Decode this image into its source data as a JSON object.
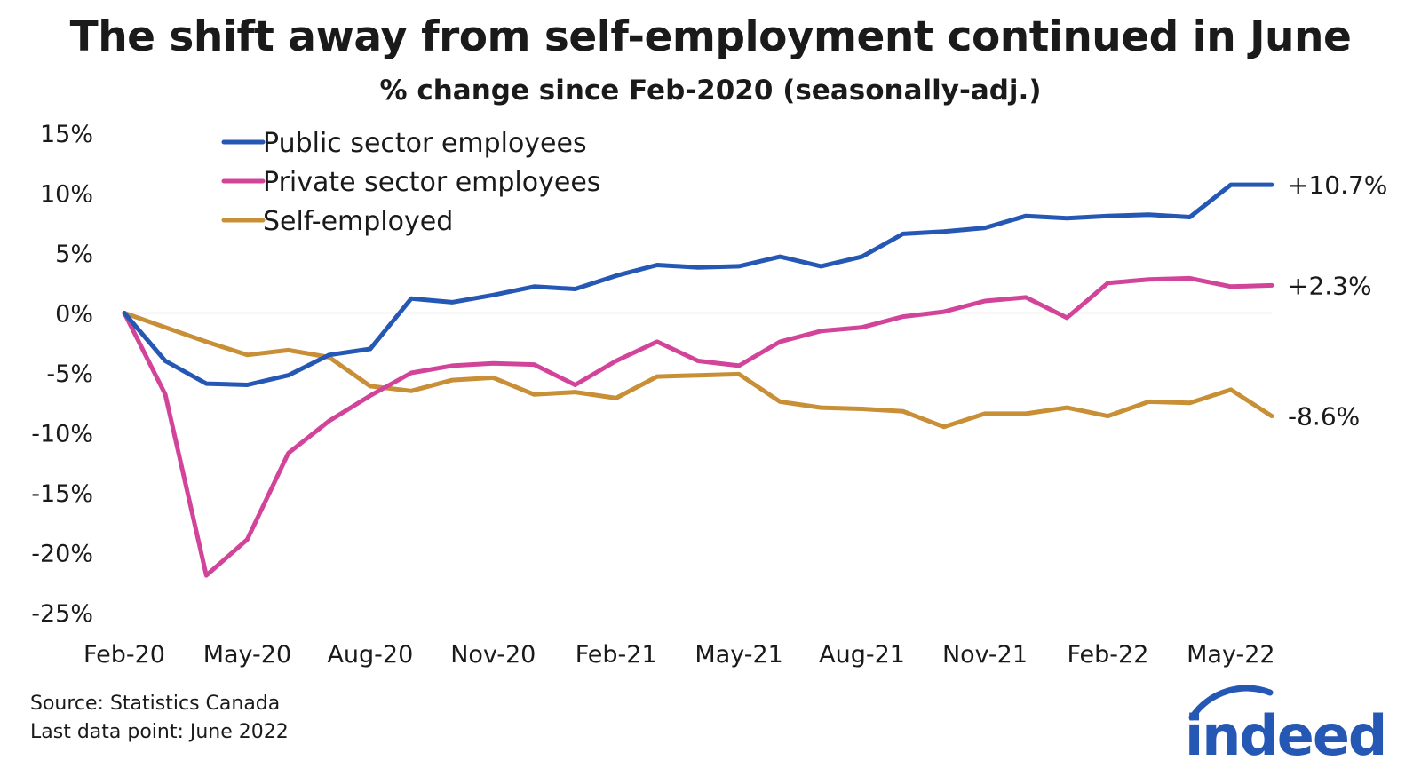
{
  "title": "The shift away from self-employment continued in June",
  "subtitle": "% change since Feb-2020 (seasonally-adj.)",
  "source": "Source: Statistics Canada",
  "last_point": "Last data point: June 2022",
  "logo_text": "indeed",
  "colors": {
    "public": "#2557b5",
    "private": "#d2449a",
    "self": "#c98f36",
    "zero_line": "#e6e6e6",
    "logo": "#2557b5"
  },
  "chart_data": {
    "type": "line",
    "title": "The shift away from self-employment continued in June",
    "subtitle": "% change since Feb-2020 (seasonally-adj.)",
    "xlabel": "",
    "ylabel": "",
    "ylim": [
      -25,
      15
    ],
    "yticks": [
      15,
      10,
      5,
      0,
      -5,
      -10,
      -15,
      -20,
      -25
    ],
    "ytick_labels": [
      "15%",
      "10%",
      "5%",
      "0%",
      "-5%",
      "-10%",
      "-15%",
      "-20%",
      "-25%"
    ],
    "x": [
      "Feb-20",
      "Mar-20",
      "Apr-20",
      "May-20",
      "Jun-20",
      "Jul-20",
      "Aug-20",
      "Sep-20",
      "Oct-20",
      "Nov-20",
      "Dec-20",
      "Jan-21",
      "Feb-21",
      "Mar-21",
      "Apr-21",
      "May-21",
      "Jun-21",
      "Jul-21",
      "Aug-21",
      "Sep-21",
      "Oct-21",
      "Nov-21",
      "Dec-21",
      "Jan-22",
      "Feb-22",
      "Mar-22",
      "Apr-22",
      "May-22",
      "Jun-22"
    ],
    "xtick_labels": [
      "Feb-20",
      "May-20",
      "Aug-20",
      "Nov-20",
      "Feb-21",
      "May-21",
      "Aug-21",
      "Nov-21",
      "Feb-22",
      "May-22"
    ],
    "xtick_indices": [
      0,
      3,
      6,
      9,
      12,
      15,
      18,
      21,
      24,
      27
    ],
    "legend_position": "top-left",
    "grid": false,
    "series": [
      {
        "name": "Public sector employees",
        "color": "#2557b5",
        "end_label": "+10.7%",
        "values": [
          0,
          -4.0,
          -5.9,
          -6.0,
          -5.2,
          -3.5,
          -3.0,
          1.2,
          0.9,
          1.5,
          2.2,
          2.0,
          3.1,
          4.0,
          3.8,
          3.9,
          4.7,
          3.9,
          4.7,
          6.6,
          6.8,
          7.1,
          8.1,
          7.9,
          8.1,
          8.2,
          8.0,
          10.7,
          10.7
        ]
      },
      {
        "name": "Private sector employees",
        "color": "#d2449a",
        "end_label": "+2.3%",
        "values": [
          0,
          -6.8,
          -21.9,
          -18.9,
          -11.7,
          -9.0,
          -6.9,
          -5.0,
          -4.4,
          -4.2,
          -4.3,
          -6.0,
          -4.0,
          -2.4,
          -4.0,
          -4.4,
          -2.4,
          -1.5,
          -1.2,
          -0.3,
          0.1,
          1.0,
          1.3,
          -0.4,
          2.5,
          2.8,
          2.9,
          2.2,
          2.3
        ]
      },
      {
        "name": "Self-employed",
        "color": "#c98f36",
        "end_label": "-8.6%",
        "values": [
          0,
          -1.2,
          -2.4,
          -3.5,
          -3.1,
          -3.7,
          -6.1,
          -6.5,
          -5.6,
          -5.4,
          -6.8,
          -6.6,
          -7.1,
          -5.3,
          -5.2,
          -5.1,
          -7.4,
          -7.9,
          -8.0,
          -8.2,
          -9.5,
          -8.4,
          -8.4,
          -7.9,
          -8.6,
          -7.4,
          -7.5,
          -6.4,
          -8.6
        ]
      }
    ]
  }
}
